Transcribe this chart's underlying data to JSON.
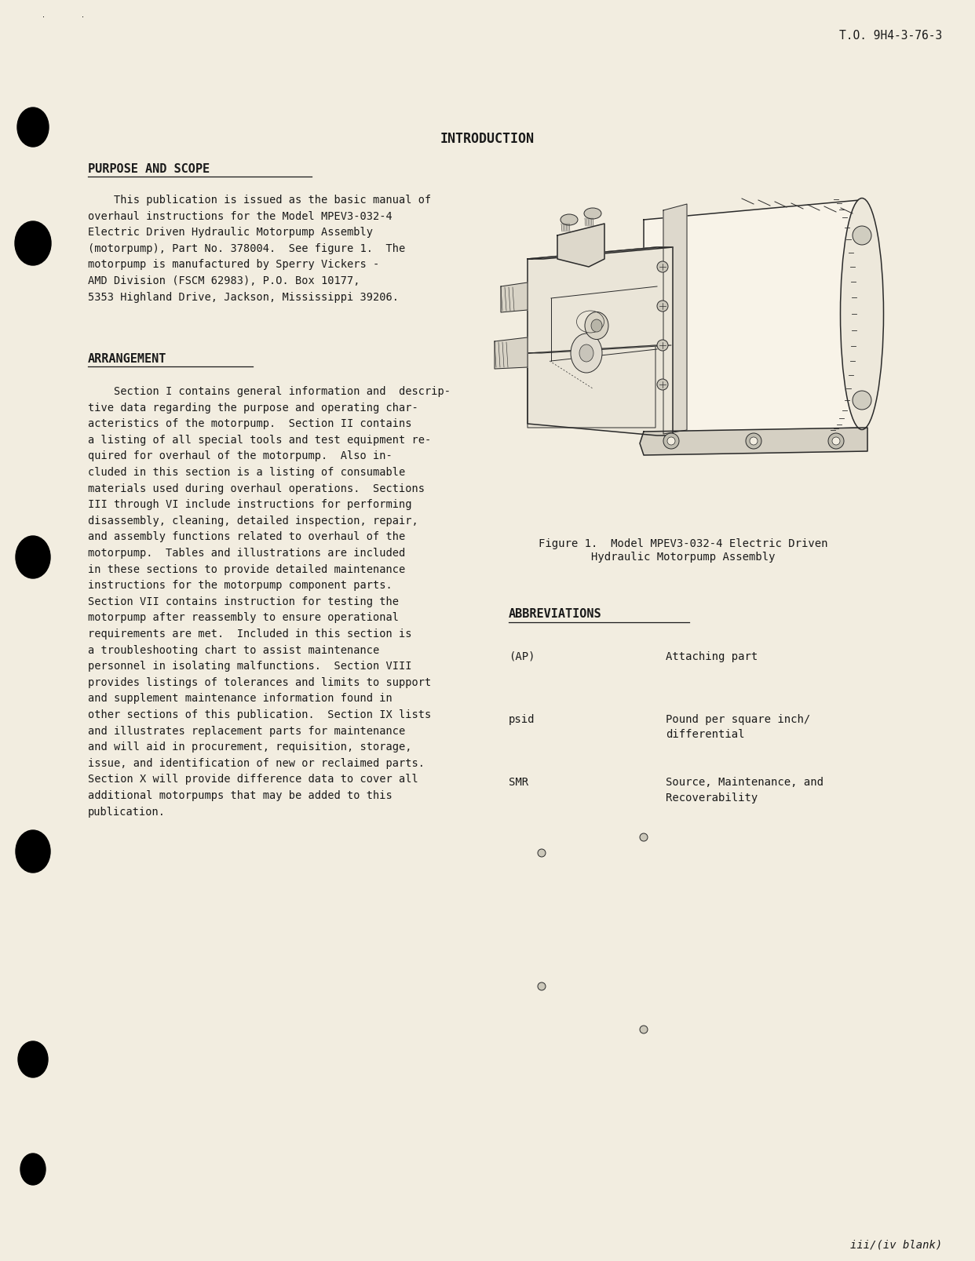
{
  "bg_color": "#f2ede0",
  "text_color": "#1a1a1a",
  "header_right": "T.O. 9H4-3-76-3",
  "title": "INTRODUCTION",
  "section1_heading": "PURPOSE AND SCOPE",
  "section1_body": "    This publication is issued as the basic manual of\noverhaul instructions for the Model MPEV3-032-4\nElectric Driven Hydraulic Motorpump Assembly\n(motorpump), Part No. 378004.  See figure 1.  The\nmotorpump is manufactured by Sperry Vickers -\nAMD Division (FSCM 62983), P.O. Box 10177,\n5353 Highland Drive, Jackson, Mississippi 39206.",
  "section2_heading": "ARRANGEMENT",
  "section2_body": "    Section I contains general information and  descrip-\ntive data regarding the purpose and operating char-\nacteristics of the motorpump.  Section II contains\na listing of all special tools and test equipment re-\nquired for overhaul of the motorpump.  Also in-\ncluded in this section is a listing of consumable\nmaterials used during overhaul operations.  Sections\nIII through VI include instructions for performing\ndisassembly, cleaning, detailed inspection, repair,\nand assembly functions related to overhaul of the\nmotorpump.  Tables and illustrations are included\nin these sections to provide detailed maintenance\ninstructions for the motorpump component parts.\nSection VII contains instruction for testing the\nmotorpump after reassembly to ensure operational\nrequirements are met.  Included in this section is\na troubleshooting chart to assist maintenance\npersonnel in isolating malfunctions.  Section VIII\nprovides listings of tolerances and limits to support\nand supplement maintenance information found in\nother sections of this publication.  Section IX lists\nand illustrates replacement parts for maintenance\nand will aid in procurement, requisition, storage,\nissue, and identification of new or reclaimed parts.\nSection X will provide difference data to cover all\nadditional motorpumps that may be added to this\npublication.",
  "figure_caption_line1": "Figure 1.  Model MPEV3-032-4 Electric Driven",
  "figure_caption_line2": "Hydraulic Motorpump Assembly",
  "abbrev_heading": "ABBREVIATIONS",
  "abbrev_rows": [
    [
      "(AP)",
      "Attaching part"
    ],
    [
      "psid",
      "Pound per square inch/\ndifferential"
    ],
    [
      "SMR",
      "Source, Maintenance, and\nRecoverability"
    ]
  ],
  "footer_right": "iii/(iv blank)"
}
